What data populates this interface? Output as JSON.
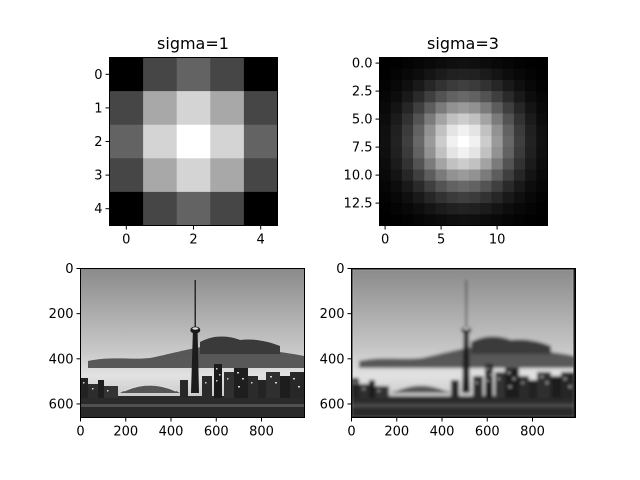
{
  "chart_data": [
    {
      "type": "heatmap",
      "title": "sigma=1",
      "colormap": "gray",
      "size": 5,
      "sigma": 1,
      "xticks": [
        0,
        2,
        4
      ],
      "xtick_labels": [
        "0",
        "2",
        "4"
      ],
      "yticks": [
        0,
        1,
        2,
        3,
        4
      ],
      "ytick_labels": [
        "0",
        "1",
        "2",
        "3",
        "4"
      ],
      "values": [
        [
          0.0,
          0.274,
          0.387,
          0.274,
          0.0
        ],
        [
          0.274,
          0.659,
          0.831,
          0.659,
          0.274
        ],
        [
          0.387,
          0.831,
          1.0,
          0.831,
          0.387
        ],
        [
          0.274,
          0.659,
          0.831,
          0.659,
          0.274
        ],
        [
          0.0,
          0.274,
          0.387,
          0.274,
          0.0
        ]
      ]
    },
    {
      "type": "heatmap",
      "title": "sigma=3",
      "colormap": "gray",
      "size": 15,
      "sigma": 3,
      "xticks": [
        0,
        5,
        10
      ],
      "xtick_labels": [
        "0",
        "5",
        "10"
      ],
      "yticks": [
        0,
        2.5,
        5,
        7.5,
        10,
        12.5
      ],
      "ytick_labels": [
        "0.0",
        "2.5",
        "5.0",
        "7.5",
        "10.0",
        "12.5"
      ]
    },
    {
      "type": "image",
      "title": "",
      "description_of_content": "grayscale city skyline",
      "xlim": [
        0,
        990
      ],
      "ylim": [
        660,
        0
      ],
      "xticks": [
        0,
        200,
        400,
        600,
        800
      ],
      "xtick_labels": [
        "0",
        "200",
        "400",
        "600",
        "800"
      ],
      "yticks": [
        0,
        200,
        400,
        600
      ],
      "ytick_labels": [
        "0",
        "200",
        "400",
        "600"
      ]
    },
    {
      "type": "image",
      "title": "",
      "blurred": true,
      "xlim": [
        0,
        990
      ],
      "ylim": [
        660,
        0
      ],
      "xticks": [
        0,
        200,
        400,
        600,
        800
      ],
      "xtick_labels": [
        "0",
        "200",
        "400",
        "600",
        "800"
      ],
      "yticks": [
        0,
        200,
        400,
        600
      ],
      "ytick_labels": [
        "0",
        "200",
        "400",
        "600"
      ]
    }
  ]
}
